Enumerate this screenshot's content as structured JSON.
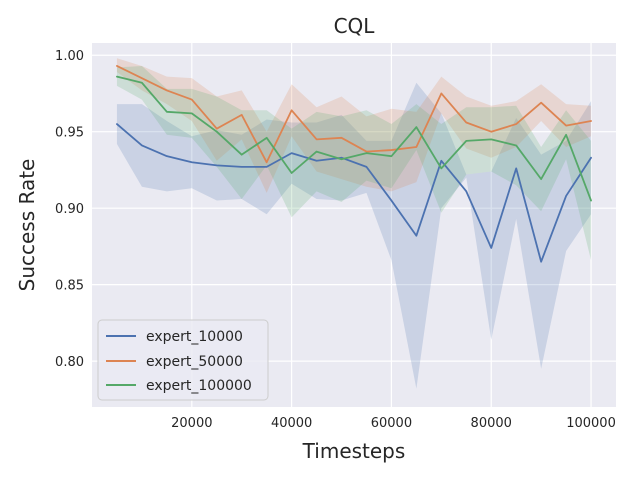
{
  "chart_data": {
    "type": "line",
    "title": "CQL",
    "xlabel": "Timesteps",
    "ylabel": "Success Rate",
    "xlim": [
      0,
      105000
    ],
    "ylim": [
      0.77,
      1.008
    ],
    "xticks": [
      20000,
      40000,
      60000,
      80000,
      100000
    ],
    "xtick_labels": [
      "20000",
      "40000",
      "60000",
      "80000",
      "100000"
    ],
    "yticks": [
      0.8,
      0.85,
      0.9,
      0.95,
      1.0
    ],
    "ytick_labels": [
      "0.80",
      "0.85",
      "0.90",
      "0.95",
      "1.00"
    ],
    "grid": true,
    "legend_position": "lower-left",
    "x": [
      5000,
      10000,
      15000,
      20000,
      25000,
      30000,
      35000,
      40000,
      45000,
      50000,
      55000,
      60000,
      65000,
      70000,
      75000,
      80000,
      85000,
      90000,
      95000,
      100000
    ],
    "series": [
      {
        "name": "expert_10000",
        "color": "#4c72b0",
        "values": [
          0.955,
          0.941,
          0.934,
          0.93,
          0.928,
          0.927,
          0.927,
          0.936,
          0.931,
          0.933,
          0.927,
          0.905,
          0.882,
          0.931,
          0.911,
          0.874,
          0.926,
          0.865,
          0.908,
          0.933
        ],
        "lower": [
          0.942,
          0.914,
          0.911,
          0.913,
          0.905,
          0.906,
          0.896,
          0.916,
          0.906,
          0.905,
          0.91,
          0.866,
          0.782,
          0.9,
          0.92,
          0.814,
          0.893,
          0.795,
          0.872,
          0.896
        ],
        "upper": [
          0.968,
          0.968,
          0.957,
          0.947,
          0.951,
          0.948,
          0.958,
          0.956,
          0.956,
          0.961,
          0.944,
          0.944,
          0.982,
          0.962,
          0.922,
          0.924,
          0.959,
          0.935,
          0.944,
          0.97
        ]
      },
      {
        "name": "expert_50000",
        "color": "#dd8452",
        "values": [
          0.993,
          0.985,
          0.977,
          0.971,
          0.952,
          0.961,
          0.93,
          0.964,
          0.945,
          0.946,
          0.937,
          0.938,
          0.94,
          0.975,
          0.956,
          0.95,
          0.955,
          0.969,
          0.954,
          0.957
        ],
        "lower": [
          0.989,
          0.977,
          0.968,
          0.957,
          0.931,
          0.945,
          0.91,
          0.947,
          0.924,
          0.919,
          0.914,
          0.911,
          0.917,
          0.962,
          0.939,
          0.933,
          0.94,
          0.957,
          0.94,
          0.947
        ],
        "upper": [
          0.998,
          0.993,
          0.986,
          0.985,
          0.973,
          0.977,
          0.95,
          0.981,
          0.966,
          0.973,
          0.96,
          0.965,
          0.963,
          0.986,
          0.973,
          0.967,
          0.97,
          0.981,
          0.968,
          0.967
        ]
      },
      {
        "name": "expert_100000",
        "color": "#55a868",
        "values": [
          0.986,
          0.982,
          0.963,
          0.962,
          0.95,
          0.935,
          0.946,
          0.923,
          0.937,
          0.932,
          0.936,
          0.934,
          0.953,
          0.926,
          0.944,
          0.945,
          0.941,
          0.919,
          0.948,
          0.905
        ],
        "lower": [
          0.98,
          0.971,
          0.948,
          0.946,
          0.927,
          0.906,
          0.928,
          0.894,
          0.911,
          0.904,
          0.918,
          0.913,
          0.938,
          0.897,
          0.922,
          0.924,
          0.915,
          0.898,
          0.932,
          0.866
        ],
        "upper": [
          0.992,
          0.993,
          0.978,
          0.978,
          0.973,
          0.964,
          0.964,
          0.952,
          0.963,
          0.96,
          0.964,
          0.955,
          0.968,
          0.955,
          0.966,
          0.966,
          0.967,
          0.94,
          0.964,
          0.944
        ]
      }
    ]
  }
}
